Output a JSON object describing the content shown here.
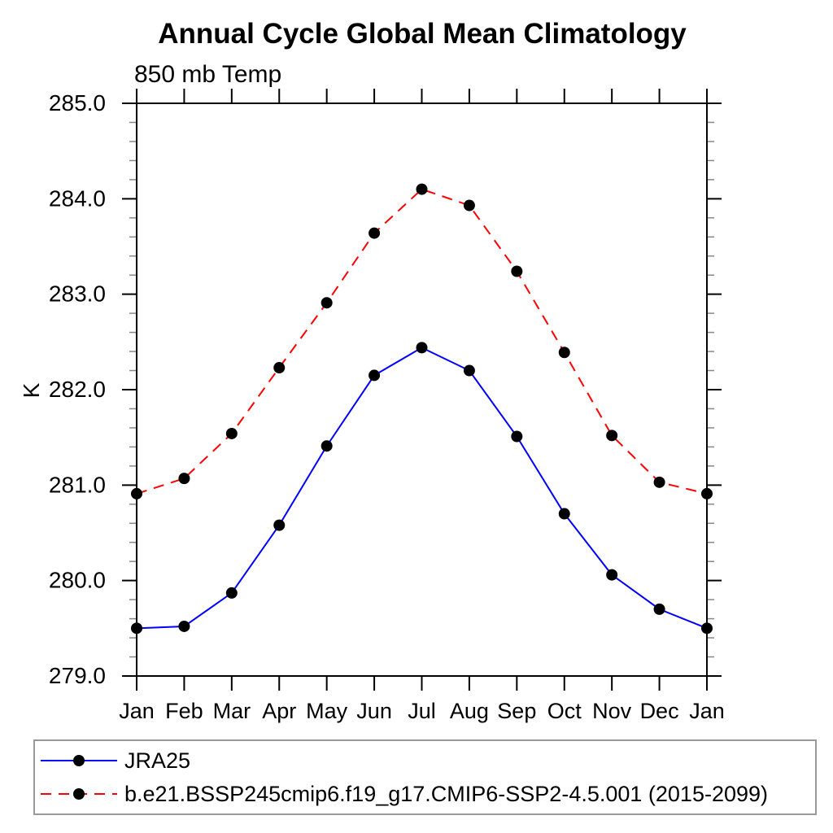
{
  "title": "Annual Cycle Global Mean Climatology",
  "subtitle": "850 mb Temp",
  "chart_data": {
    "type": "line",
    "title": "Annual Cycle Global Mean Climatology",
    "subtitle": "850 mb Temp",
    "xlabel": "",
    "ylabel": "K",
    "x_categories": [
      "Jan",
      "Feb",
      "Mar",
      "Apr",
      "May",
      "Jun",
      "Jul",
      "Aug",
      "Sep",
      "Oct",
      "Nov",
      "Dec",
      "Jan"
    ],
    "ylim": [
      279.0,
      285.0
    ],
    "ytick_step": 1.0,
    "ytick_minor_step": 0.2,
    "ytick_labels": [
      "279.0",
      "280.0",
      "281.0",
      "282.0",
      "283.0",
      "284.0",
      "285.0"
    ],
    "grid": false,
    "legend_position": "bottom-left-box",
    "series": [
      {
        "name": "JRA25",
        "color": "#0000ff",
        "line_style": "solid",
        "marker": "filled-circle",
        "marker_color": "#000000",
        "values": [
          279.5,
          279.52,
          279.87,
          280.58,
          281.41,
          282.15,
          282.44,
          282.2,
          281.51,
          280.7,
          280.06,
          279.7,
          279.5
        ]
      },
      {
        "name": "b.e21.BSSP245cmip6.f19_g17.CMIP6-SSP2-4.5.001 (2015-2099)",
        "color": "#ff0000",
        "line_style": "dashed",
        "marker": "filled-circle",
        "marker_color": "#000000",
        "values": [
          280.91,
          281.07,
          281.54,
          282.23,
          282.91,
          283.64,
          284.1,
          283.93,
          283.24,
          282.39,
          281.52,
          281.03,
          280.91
        ]
      }
    ]
  },
  "colors": {
    "background": "#ffffff",
    "axis": "#000000",
    "minor_tick": "#888888",
    "legend_border": "#999999",
    "text": "#000000"
  }
}
